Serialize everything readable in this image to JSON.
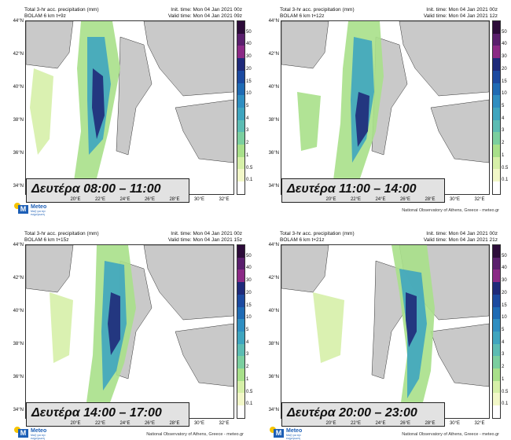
{
  "colorbar": {
    "labels": [
      "50",
      "40",
      "30",
      "20",
      "15",
      "10",
      "5",
      "4",
      "3",
      "2",
      "1",
      "0.5",
      "0.1"
    ],
    "colors": [
      "#2d0c3a",
      "#5a1f6d",
      "#8b2a86",
      "#1f2a7a",
      "#1c4aa0",
      "#1f6bb4",
      "#2f8ec1",
      "#3fa5bf",
      "#5cbcb3",
      "#7bcf9f",
      "#a8e08a",
      "#d6f0a8",
      "#f2f8c8",
      "#ffffff"
    ]
  },
  "lat_labels": [
    "44°N",
    "42°N",
    "40°N",
    "38°N",
    "36°N",
    "34°N"
  ],
  "lon_labels": [
    "20°E",
    "22°E",
    "24°E",
    "26°E",
    "28°E",
    "30°E",
    "32°E"
  ],
  "logo": {
    "brand": "Meteo",
    "subtitle": "Μαζί για την ενημέρωση"
  },
  "panels": [
    {
      "title": "Total 3-hr acc. precipitation (mm)",
      "model": "BOLAM 6 km t+9z",
      "init": "Init. time: Mon 04 Jan 2021 00z",
      "valid": "Valid time: Mon 04 Jan 2021 09z",
      "overlay": "Δευτέρα 08:00 – 11:00",
      "credit": ""
    },
    {
      "title": "Total 3-hr acc. precipitation (mm)",
      "model": "BOLAM 6 km t+12z",
      "init": "Init. time: Mon 04 Jan 2021 00z",
      "valid": "Valid time: Mon 04 Jan 2021 12z",
      "overlay": "Δευτέρα 11:00 – 14:00",
      "credit": "National Observatory of Athens, Greece - meteo.gr"
    },
    {
      "title": "Total 3-hr acc. precipitation (mm)",
      "model": "BOLAM 6 km t+15z",
      "init": "Init. time: Mon 04 Jan 2021 00z",
      "valid": "Valid time: Mon 04 Jan 2021 15z",
      "overlay": "Δευτέρα 14:00 – 17:00",
      "credit": "National Observatory of Athens, Greece - meteo.gr"
    },
    {
      "title": "Total 3-hr acc. precipitation (mm)",
      "model": "BOLAM 6 km t+21z",
      "init": "Init. time: Mon 04 Jan 2021 00z",
      "valid": "Valid time: Mon 04 Jan 2021 21z",
      "overlay": "Δευτέρα 20:00 – 23:00",
      "credit": "National Observatory of Athens, Greece - meteo.gr"
    }
  ]
}
